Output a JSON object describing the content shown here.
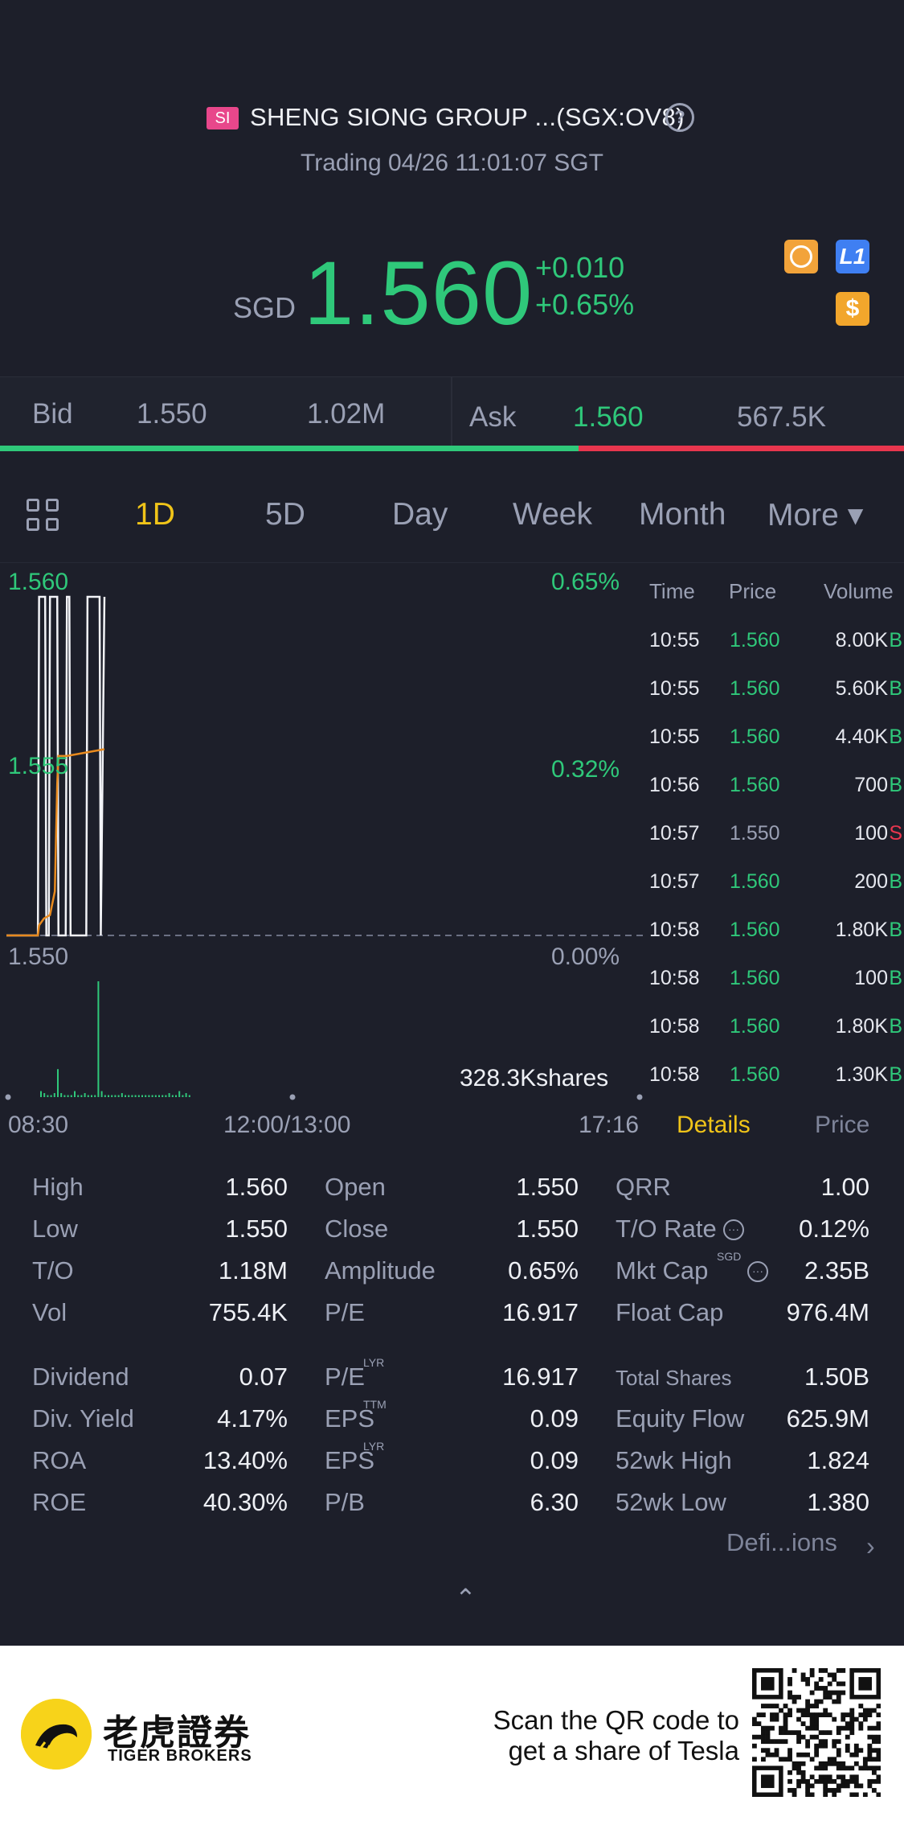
{
  "header": {
    "badge": "SI",
    "title": "SHENG SIONG GROUP ...(SGX:OV8)",
    "help": "?",
    "status": "Trading 04/26 11:01:07 SGT",
    "currency": "SGD",
    "price": "1.560",
    "change": "+0.010",
    "change_pct": "+0.65%",
    "icons": [
      "no-short-icon",
      "level1-icon",
      "dollar-icon"
    ],
    "level_badge": "L1",
    "dollar_badge": "$"
  },
  "quote": {
    "bid_label": "Bid",
    "bid_price": "1.550",
    "bid_size": "1.02M",
    "ask_label": "Ask",
    "ask_price": "1.560",
    "ask_size": "567.5K",
    "bid_ratio": 0.64
  },
  "tabs": [
    {
      "label": "1D",
      "active": true
    },
    {
      "label": "5D",
      "active": false
    },
    {
      "label": "Day",
      "active": false
    },
    {
      "label": "Week",
      "active": false
    },
    {
      "label": "Month",
      "active": false
    },
    {
      "label": "More ▾",
      "active": false
    }
  ],
  "chart_data": {
    "type": "line",
    "y_left_ticks": [
      "1.560",
      "1.555",
      "1.550"
    ],
    "y_right_ticks": [
      "0.65%",
      "0.32%",
      "0.00%"
    ],
    "ylim": [
      1.55,
      1.56
    ],
    "x_ticks": [
      "08:30",
      "12:00/13:00",
      "17:16"
    ],
    "volume_label": "328.3Kshares",
    "series": [
      {
        "kind": "price",
        "x": [
          "08:30",
          "08:56",
          "08:57",
          "09:02",
          "09:03",
          "09:05",
          "09:06",
          "09:12",
          "09:13",
          "09:19",
          "09:20",
          "09:22",
          "09:23",
          "09:36",
          "09:37",
          "09:47",
          "09:48",
          "09:51"
        ],
        "values": [
          1.55,
          1.55,
          1.56,
          1.56,
          1.55,
          1.55,
          1.56,
          1.56,
          1.55,
          1.55,
          1.56,
          1.56,
          1.55,
          1.55,
          1.56,
          1.56,
          1.55,
          1.56
        ]
      },
      {
        "kind": "average",
        "x": [
          "08:30",
          "08:56",
          "08:57",
          "09:01",
          "09:06",
          "09:10",
          "09:12",
          "09:13",
          "09:20",
          "09:51"
        ],
        "values": [
          1.55,
          1.55,
          1.5503,
          1.5505,
          1.5506,
          1.5513,
          1.5545,
          1.5553,
          1.5553,
          1.5555
        ]
      }
    ],
    "volume_bars": [
      3,
      2,
      1,
      1,
      2,
      14,
      2,
      1,
      1,
      1,
      3,
      1,
      1,
      2,
      1,
      1,
      1,
      58,
      3,
      1,
      1,
      1,
      1,
      1,
      2,
      1,
      1,
      1,
      1,
      1,
      1,
      1,
      1,
      1,
      1,
      1,
      1,
      1,
      2,
      1,
      1,
      3,
      1,
      2,
      1
    ]
  },
  "trades": {
    "headers": [
      "Time",
      "Price",
      "Volume"
    ],
    "rows": [
      {
        "time": "10:55",
        "price": "1.560",
        "vol": "8.00K",
        "side": "B"
      },
      {
        "time": "10:55",
        "price": "1.560",
        "vol": "5.60K",
        "side": "B"
      },
      {
        "time": "10:55",
        "price": "1.560",
        "vol": "4.40K",
        "side": "B"
      },
      {
        "time": "10:56",
        "price": "1.560",
        "vol": "700",
        "side": "B"
      },
      {
        "time": "10:57",
        "price": "1.550",
        "vol": "100",
        "side": "S"
      },
      {
        "time": "10:57",
        "price": "1.560",
        "vol": "200",
        "side": "B"
      },
      {
        "time": "10:58",
        "price": "1.560",
        "vol": "1.80K",
        "side": "B"
      },
      {
        "time": "10:58",
        "price": "1.560",
        "vol": "100",
        "side": "B"
      },
      {
        "time": "10:58",
        "price": "1.560",
        "vol": "1.80K",
        "side": "B"
      },
      {
        "time": "10:58",
        "price": "1.560",
        "vol": "1.30K",
        "side": "B"
      }
    ]
  },
  "sub_tabs": {
    "details": "Details",
    "price": "Price"
  },
  "details": {
    "col1": [
      {
        "label": "High",
        "value": "1.560"
      },
      {
        "label": "Low",
        "value": "1.550"
      },
      {
        "label": "T/O",
        "value": "1.18M"
      },
      {
        "label": "Vol",
        "value": "755.4K"
      },
      {
        "label": "Dividend",
        "value": "0.07"
      },
      {
        "label": "Div. Yield",
        "value": "4.17%"
      },
      {
        "label": "ROA",
        "value": "13.40%"
      },
      {
        "label": "ROE",
        "value": "40.30%"
      }
    ],
    "col2": [
      {
        "label": "Open",
        "value": "1.550",
        "sup": ""
      },
      {
        "label": "Close",
        "value": "1.550",
        "sup": ""
      },
      {
        "label": "Amplitude",
        "value": "0.65%",
        "sup": ""
      },
      {
        "label": "P/E",
        "value": "16.917",
        "sup": ""
      },
      {
        "label": "P/E",
        "value": "16.917",
        "sup": "LYR"
      },
      {
        "label": "EPS",
        "value": "0.09",
        "sup": "TTM"
      },
      {
        "label": "EPS",
        "value": "0.09",
        "sup": "LYR"
      },
      {
        "label": "P/B",
        "value": "6.30",
        "sup": ""
      }
    ],
    "col3": [
      {
        "label": "QRR",
        "value": "1.00"
      },
      {
        "label": "T/O Rate",
        "value": "0.12%"
      },
      {
        "label": "Mkt Cap",
        "value": "2.35B",
        "sup": "SGD"
      },
      {
        "label": "Float Cap",
        "value": "976.4M"
      },
      {
        "label": "Total Shares",
        "value": "1.50B"
      },
      {
        "label": "Equity Flow",
        "value": "625.9M"
      },
      {
        "label": "52wk High",
        "value": "1.824"
      },
      {
        "label": "52wk Low",
        "value": "1.380"
      }
    ],
    "definitions": "Defi...ions"
  },
  "footer": {
    "brand_cn": "老虎證券",
    "brand_en": "TIGER BROKERS",
    "scan_line1": "Scan the QR code to",
    "scan_line2": "get a share of Tesla"
  },
  "colors": {
    "up": "#2fc87a",
    "down": "#e8364e",
    "accent": "#f0c419",
    "avg_line": "#e88a1e"
  }
}
